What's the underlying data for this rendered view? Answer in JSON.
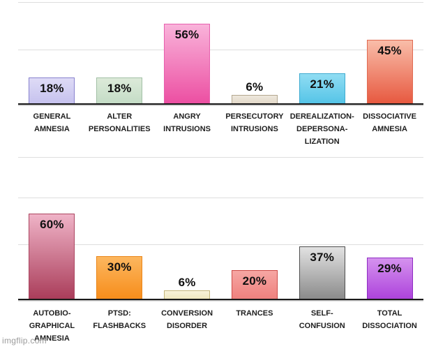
{
  "page": {
    "watermark": "imgflip.com",
    "background_color": "#ffffff",
    "gridline_color": "#dedede",
    "axis_color": "#1a1a1a"
  },
  "chart_data": [
    {
      "type": "bar",
      "title": "",
      "unit": "%",
      "ylim": [
        0,
        73
      ],
      "grid": true,
      "legend": false,
      "categories": [
        "GENERAL AMNESIA",
        "ALTER PERSONALITIES",
        "ANGRY INTRUSIONS",
        "PERSECUTORY INTRUSIONS",
        "DEREALIZATION-DEPERSONA-LIZATION",
        "DISSOCIATIVE AMNESIA"
      ],
      "category_lines": [
        [
          "GENERAL",
          "AMNESIA"
        ],
        [
          "ALTER",
          "PERSONALITIES"
        ],
        [
          "ANGRY",
          "INTRUSIONS"
        ],
        [
          "PERSECUTORY",
          "INTRUSIONS"
        ],
        [
          "DEREALIZATION-",
          "DEPERSONA-",
          "LIZATION"
        ],
        [
          "DISSOCIATIVE",
          "AMNESIA"
        ]
      ],
      "values": [
        18,
        18,
        56,
        6,
        21,
        45
      ],
      "value_labels": [
        "18%",
        "18%",
        "56%",
        "6%",
        "21%",
        "45%"
      ],
      "colors": [
        {
          "top": "#dedbf6",
          "bottom": "#c6c2ee",
          "border": "#8781ce"
        },
        {
          "top": "#dcead9",
          "bottom": "#c4dcc6",
          "border": "#a2c0a6"
        },
        {
          "top": "#f9b3da",
          "bottom": "#ec4fa2",
          "border": "#e760ae"
        },
        {
          "top": "#eee8dd",
          "bottom": "#e3d9c9",
          "border": "#b3a78f"
        },
        {
          "top": "#90ddf3",
          "bottom": "#55c4e7",
          "border": "#3fabd0"
        },
        {
          "top": "#f9bda9",
          "bottom": "#e75940",
          "border": "#e06a52"
        }
      ]
    },
    {
      "type": "bar",
      "title": "",
      "unit": "%",
      "ylim": [
        0,
        73
      ],
      "grid": true,
      "legend": false,
      "categories": [
        "AUTOBIO-GRAPHICAL AMNESIA",
        "PTSD: FLASHBACKS",
        "CONVERSION DISORDER",
        "TRANCES",
        "SELF-CONFUSION",
        "TOTAL DISSOCIATION"
      ],
      "category_lines": [
        [
          "AUTOBIO-",
          "GRAPHICAL",
          "AMNESIA"
        ],
        [
          "PTSD:",
          "FLASHBACKS"
        ],
        [
          "CONVERSION",
          "DISORDER"
        ],
        [
          "TRANCES"
        ],
        [
          "SELF-",
          "CONFUSION"
        ],
        [
          "TOTAL",
          "DISSOCIATION"
        ]
      ],
      "values": [
        60,
        30,
        6,
        20,
        37,
        29
      ],
      "value_labels": [
        "60%",
        "30%",
        "6%",
        "20%",
        "37%",
        "29%"
      ],
      "colors": [
        {
          "top": "#efb3c7",
          "bottom": "#aa3d5a",
          "border": "#ab4560"
        },
        {
          "top": "#fcb75f",
          "bottom": "#f78d1b",
          "border": "#ea8518"
        },
        {
          "top": "#f8f3da",
          "bottom": "#efe7bf",
          "border": "#c2b57a"
        },
        {
          "top": "#f6a6a3",
          "bottom": "#ee817e",
          "border": "#cc4a47"
        },
        {
          "top": "#e2e2e2",
          "bottom": "#8b8b8b",
          "border": "#4f4f4f"
        },
        {
          "top": "#d592ee",
          "bottom": "#ad43dc",
          "border": "#8e2cc2"
        }
      ]
    }
  ]
}
